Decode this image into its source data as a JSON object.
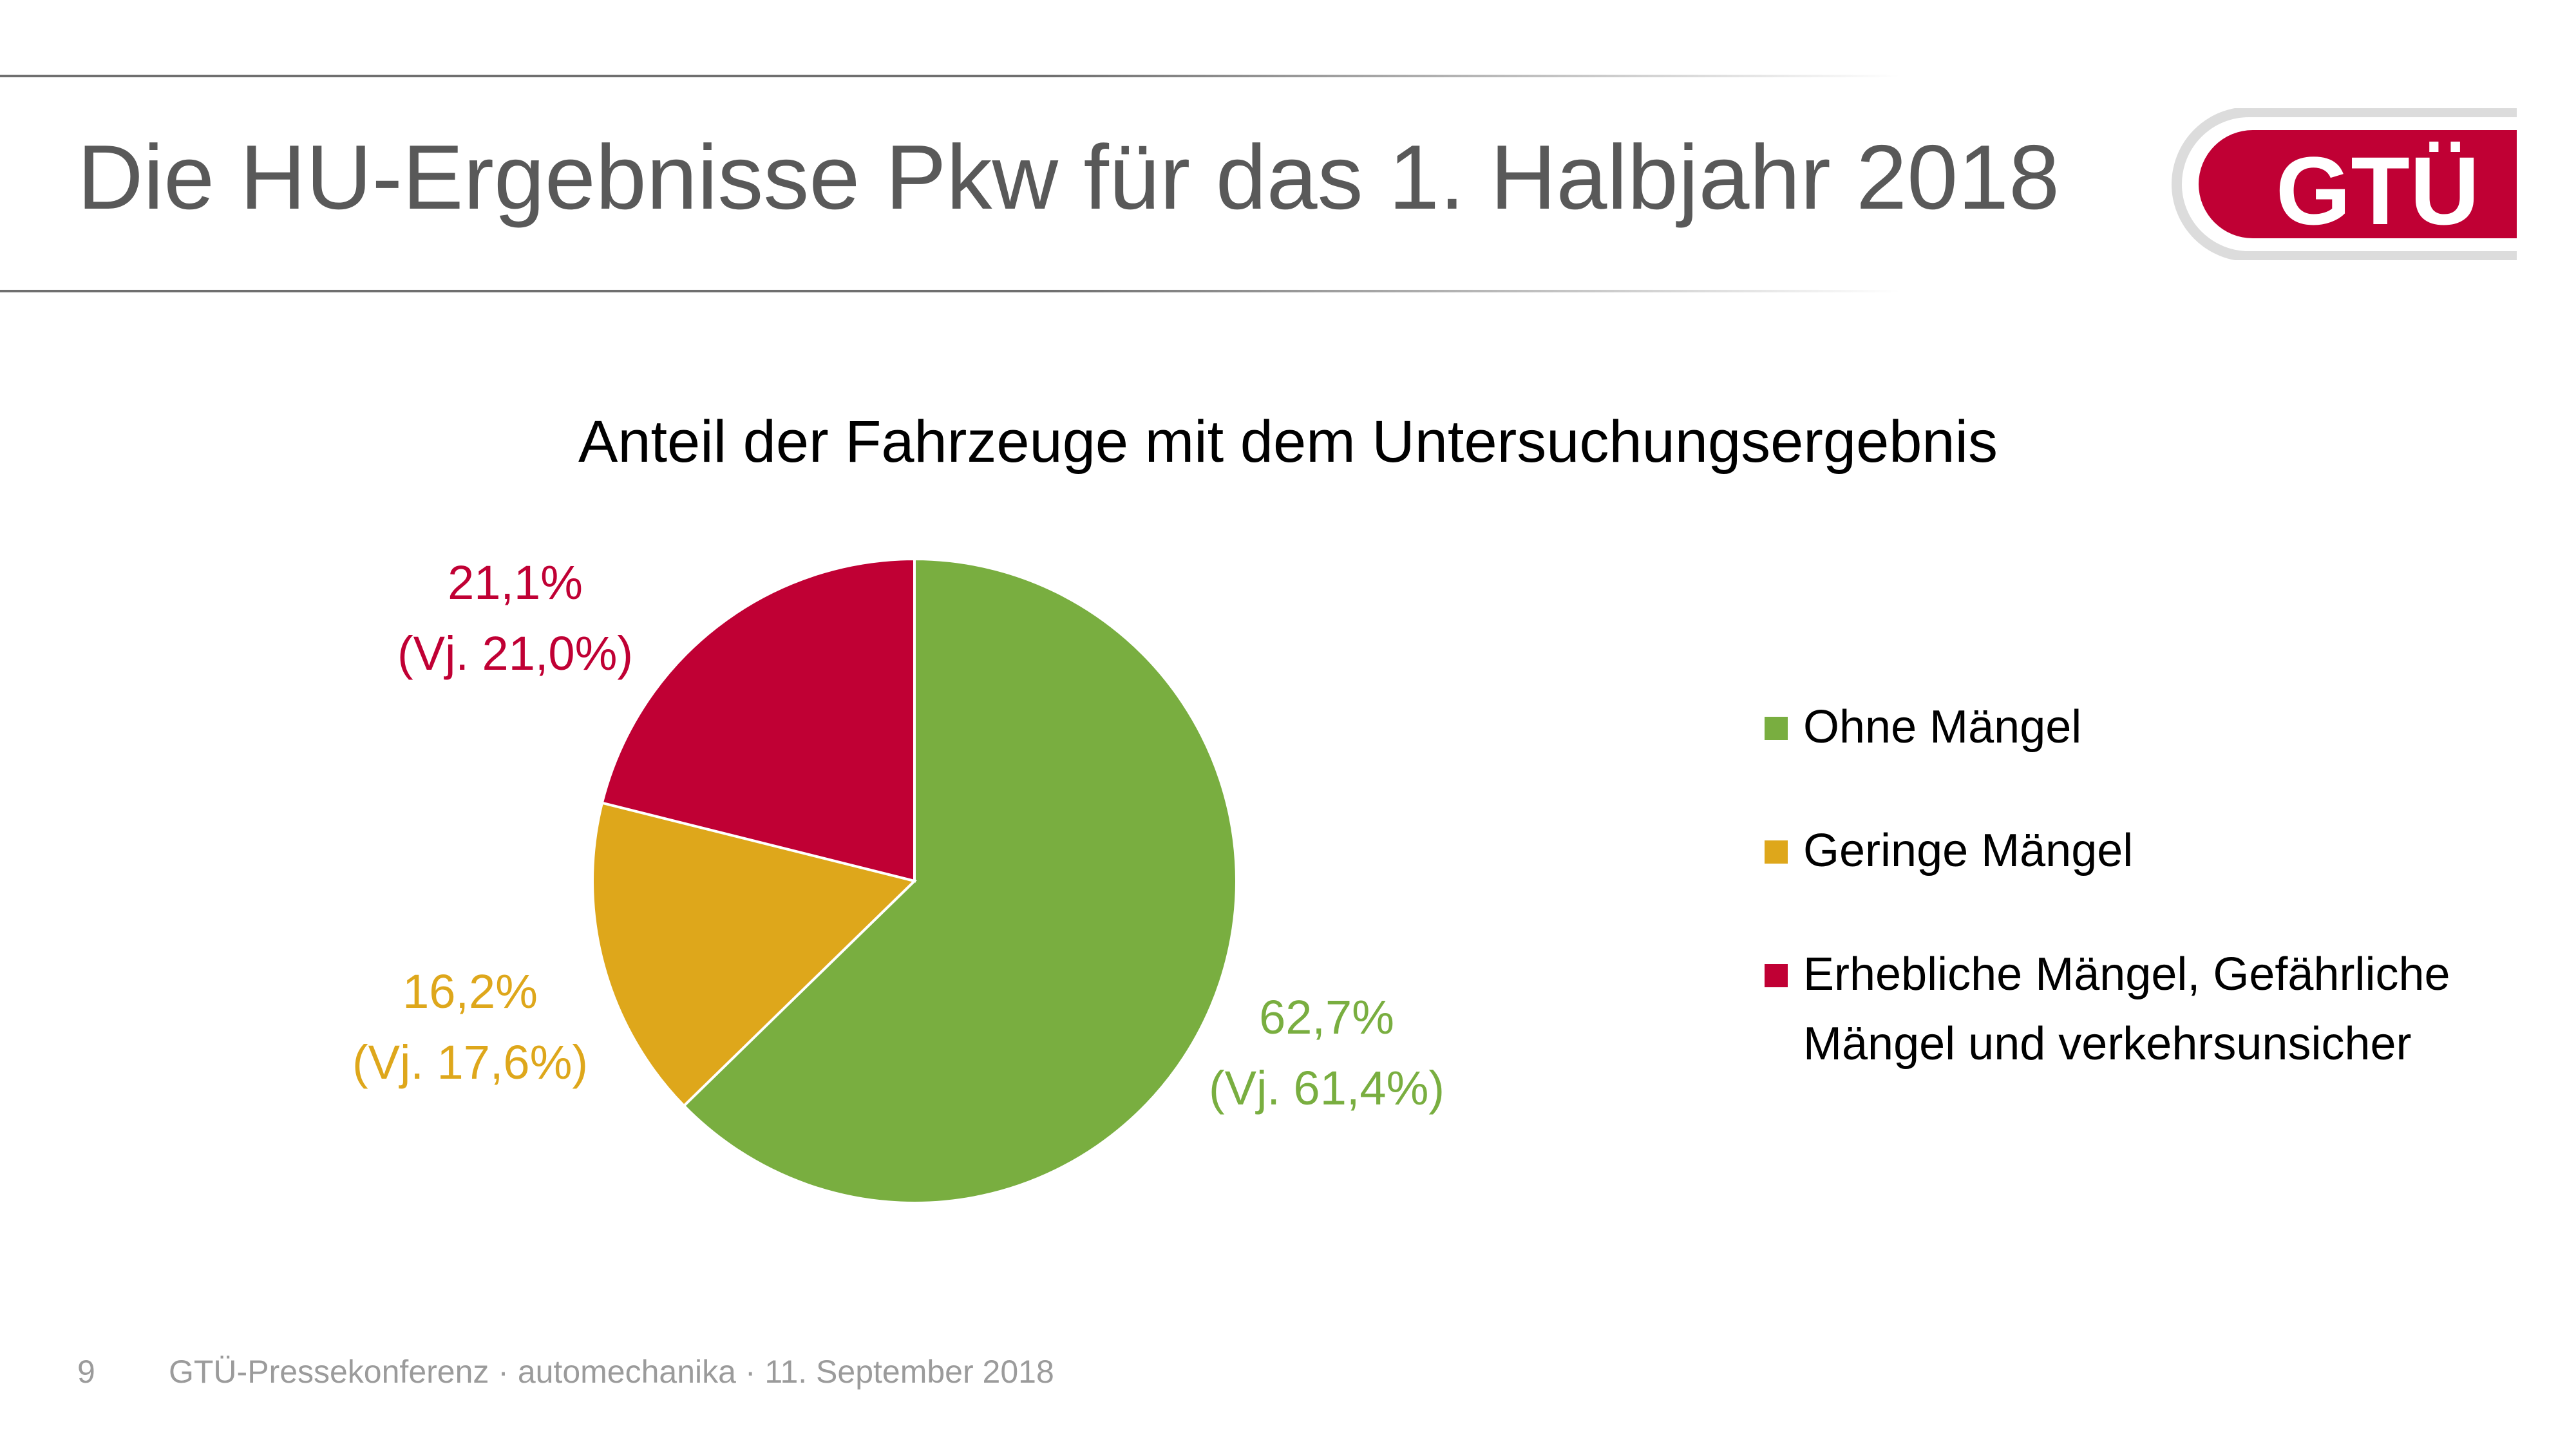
{
  "slide": {
    "title": "Die HU-Ergebnisse Pkw für das 1. Halbjahr 2018",
    "logo_text": "GTÜ",
    "page_number": "9",
    "footer": "GTÜ-Pressekonferenz · automechanika · 11. September 2018"
  },
  "colors": {
    "green": "#79ae40",
    "yellow": "#dea71b",
    "red": "#c00034",
    "title_gray": "#595959",
    "logo_gray": "#dcdcdc"
  },
  "chart_data": {
    "type": "pie",
    "title": "Anteil der Fahrzeuge mit dem Untersuchungsergebnis",
    "slices": [
      {
        "name": "Ohne Mängel",
        "value": 62.7,
        "label": "62,7%",
        "previous_label": "(Vj. 61,4%)",
        "color": "#79ae40"
      },
      {
        "name": "Geringe Mängel",
        "value": 16.2,
        "label": "16,2%",
        "previous_label": "(Vj. 17,6%)",
        "color": "#dea71b"
      },
      {
        "name": "Erhebliche Mängel, Gefährliche Mängel und verkehrsunsicher",
        "value": 21.1,
        "label": "21,1%",
        "previous_label": "(Vj. 21,0%)",
        "color": "#c00034"
      }
    ],
    "start": "12 o'clock",
    "direction": "clockwise",
    "legend_position": "right"
  }
}
